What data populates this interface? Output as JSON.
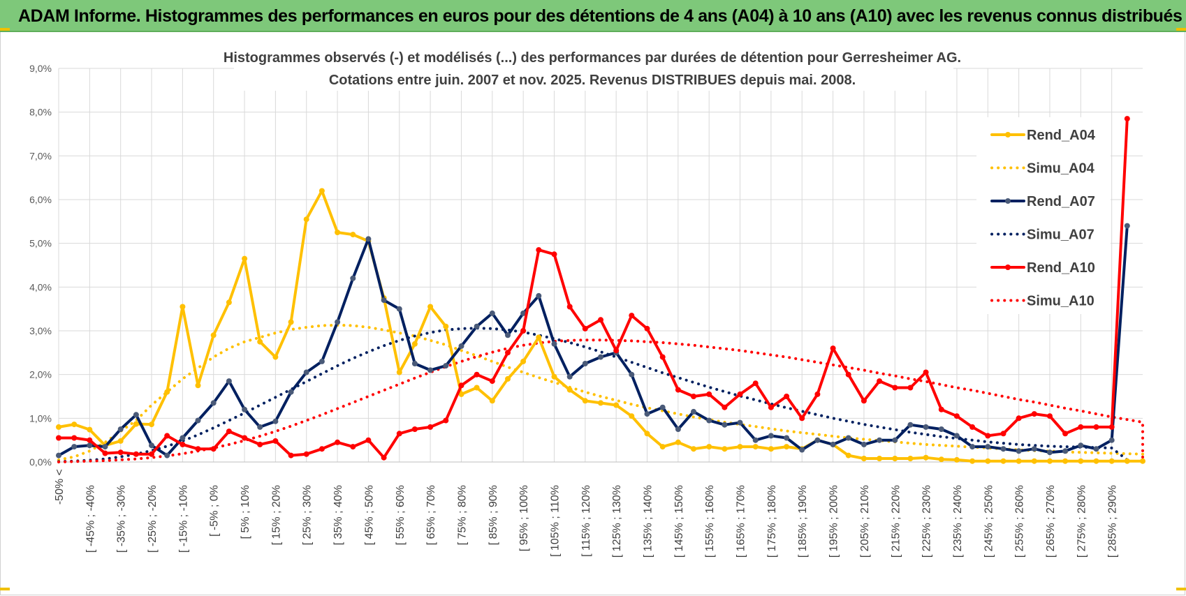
{
  "header": {
    "title": "ADAM Informe. Histogrammes des performances en euros pour des détentions de 4 ans (A04) à 10 ans (A10) avec les revenus connus distribués"
  },
  "colors": {
    "banner": "#7ec87a",
    "a04": "#ffc000",
    "a07": "#002060",
    "a10": "#ff0000",
    "grid": "#d9d9d9"
  },
  "chart_data": {
    "type": "line",
    "title_lines": [
      "Histogrammes observés (-) et modélisés (...) des performances par durées de détention pour Gerresheimer AG.",
      "Cotations entre juin. 2007 et nov. 2025. Revenus DISTRIBUES depuis mai. 2008."
    ],
    "ylim": [
      0,
      9
    ],
    "y_ticks": [
      "0,0%",
      "1,0%",
      "2,0%",
      "3,0%",
      "4,0%",
      "5,0%",
      "6,0%",
      "7,0%",
      "8,0%",
      "9,0%"
    ],
    "grid": true,
    "legend_position": "right",
    "x_labels": [
      "-50% <",
      "[ -45% ; -40%",
      "[ -35% ; -30%",
      "[ -25% ; -20%",
      "[ -15% ; -10%",
      "[ -5% ; 0%",
      "[ 5% ; 10%",
      "[ 15% ; 20%",
      "[ 25% ; 30%",
      "[ 35% ; 40%",
      "[ 45% ; 50%",
      "[ 55% ; 60%",
      "[ 65% ; 70%",
      "[ 75% ; 80%",
      "[ 85% ; 90%",
      "[ 95% ; 100%",
      "[ 105% ; 110%",
      "[ 115% ; 120%",
      "[ 125% ; 130%",
      "[ 135% ; 140%",
      "[ 145% ; 150%",
      "[ 155% ; 160%",
      "[ 165% ; 170%",
      "[ 175% ; 180%",
      "[ 185% ; 190%",
      "[ 195% ; 200%",
      "[ 205% ; 210%",
      "[ 215% ; 220%",
      "[ 225% ; 230%",
      "[ 235% ; 240%",
      "[ 245% ; 250%",
      "[ 255% ; 260%",
      "[ 265% ; 270%",
      "[ 275% ; 280%",
      "[ 285% ; 290%"
    ],
    "series": [
      {
        "name": "Rend_A04",
        "style": "solid",
        "color": "#ffc000",
        "values": [
          0.8,
          0.86,
          0.74,
          0.38,
          0.48,
          0.87,
          0.86,
          1.6,
          3.55,
          1.75,
          2.9,
          3.65,
          4.65,
          2.75,
          2.4,
          3.2,
          5.55,
          6.2,
          5.25,
          5.2,
          5.05,
          3.75,
          2.05,
          2.7,
          3.55,
          3.1,
          1.55,
          1.7,
          1.4,
          1.9,
          2.3,
          2.85,
          1.95,
          1.65,
          1.4,
          1.35,
          1.3,
          1.05,
          0.65,
          0.35,
          0.45,
          0.3,
          0.35,
          0.3,
          0.35,
          0.35,
          0.3,
          0.35,
          0.3,
          0.5,
          0.4,
          0.15,
          0.08,
          0.08,
          0.08,
          0.08,
          0.1,
          0.06,
          0.05,
          0.02,
          0.02,
          0.02,
          0.02,
          0.02,
          0.02,
          0.02,
          0.02,
          0.02,
          0.02,
          0.02,
          0.02
        ]
      },
      {
        "name": "Simu_A04",
        "style": "dotted",
        "color": "#ffc000",
        "values": [
          0.05,
          0.12,
          0.25,
          0.45,
          0.7,
          0.95,
          1.3,
          1.6,
          1.9,
          2.15,
          2.4,
          2.6,
          2.75,
          2.85,
          2.95,
          3.03,
          3.08,
          3.12,
          3.13,
          3.12,
          3.08,
          3.02,
          2.95,
          2.88,
          2.78,
          2.68,
          2.55,
          2.43,
          2.3,
          2.17,
          2.05,
          1.93,
          1.82,
          1.71,
          1.6,
          1.5,
          1.41,
          1.32,
          1.24,
          1.17,
          1.1,
          1.03,
          0.97,
          0.91,
          0.86,
          0.81,
          0.76,
          0.71,
          0.67,
          0.63,
          0.59,
          0.55,
          0.52,
          0.49,
          0.46,
          0.43,
          0.4,
          0.38,
          0.36,
          0.34,
          0.32,
          0.3,
          0.28,
          0.26,
          0.25,
          0.23,
          0.22,
          0.21,
          0.2,
          0.19,
          0.18
        ]
      },
      {
        "name": "Rend_A07",
        "style": "solid",
        "color": "#002060",
        "values": [
          0.15,
          0.35,
          0.38,
          0.35,
          0.75,
          1.08,
          0.38,
          0.15,
          0.55,
          0.95,
          1.35,
          1.85,
          1.2,
          0.8,
          0.93,
          1.6,
          2.05,
          2.3,
          3.2,
          4.2,
          5.1,
          3.7,
          3.5,
          2.25,
          2.1,
          2.2,
          2.65,
          3.1,
          3.4,
          2.9,
          3.4,
          3.8,
          2.7,
          1.95,
          2.25,
          2.4,
          2.5,
          2.0,
          1.1,
          1.25,
          0.75,
          1.15,
          0.95,
          0.85,
          0.9,
          0.5,
          0.6,
          0.55,
          0.28,
          0.5,
          0.4,
          0.55,
          0.4,
          0.5,
          0.5,
          0.85,
          0.8,
          0.75,
          0.6,
          0.35,
          0.35,
          0.3,
          0.25,
          0.3,
          0.22,
          0.25,
          0.38,
          0.3,
          0.5,
          5.4
        ]
      },
      {
        "name": "Simu_A07",
        "style": "dotted",
        "color": "#002060",
        "values": [
          0.01,
          0.02,
          0.04,
          0.07,
          0.12,
          0.18,
          0.26,
          0.36,
          0.48,
          0.62,
          0.78,
          0.95,
          1.12,
          1.3,
          1.48,
          1.66,
          1.84,
          2.02,
          2.2,
          2.37,
          2.52,
          2.66,
          2.78,
          2.88,
          2.96,
          3.02,
          3.05,
          3.06,
          3.05,
          3.02,
          2.97,
          2.9,
          2.82,
          2.73,
          2.63,
          2.52,
          2.4,
          2.28,
          2.16,
          2.04,
          1.93,
          1.82,
          1.71,
          1.61,
          1.51,
          1.42,
          1.33,
          1.24,
          1.16,
          1.08,
          1.0,
          0.93,
          0.86,
          0.8,
          0.74,
          0.68,
          0.63,
          0.58,
          0.54,
          0.5,
          0.46,
          0.43,
          0.4,
          0.38,
          0.36,
          0.35,
          0.34,
          0.33,
          0.32,
          0.05
        ]
      },
      {
        "name": "Rend_A10",
        "style": "solid",
        "color": "#ff0000",
        "values": [
          0.55,
          0.55,
          0.5,
          0.2,
          0.22,
          0.18,
          0.18,
          0.6,
          0.4,
          0.3,
          0.3,
          0.7,
          0.55,
          0.4,
          0.48,
          0.15,
          0.18,
          0.3,
          0.45,
          0.35,
          0.5,
          0.1,
          0.65,
          0.75,
          0.8,
          0.95,
          1.75,
          2.0,
          1.85,
          2.5,
          3.0,
          4.85,
          4.75,
          3.55,
          3.05,
          3.25,
          2.55,
          3.35,
          3.05,
          2.4,
          1.65,
          1.5,
          1.55,
          1.25,
          1.55,
          1.8,
          1.25,
          1.5,
          1.0,
          1.55,
          2.6,
          2.0,
          1.4,
          1.85,
          1.7,
          1.7,
          2.05,
          1.2,
          1.05,
          0.8,
          0.6,
          0.65,
          1.0,
          1.1,
          1.05,
          0.65,
          0.8,
          0.8,
          0.8,
          7.85
        ]
      },
      {
        "name": "Simu_A10",
        "style": "dotted",
        "color": "#ff0000",
        "values": [
          0.0,
          0.01,
          0.02,
          0.03,
          0.05,
          0.07,
          0.1,
          0.14,
          0.19,
          0.25,
          0.32,
          0.4,
          0.49,
          0.59,
          0.7,
          0.82,
          0.95,
          1.08,
          1.22,
          1.36,
          1.5,
          1.64,
          1.78,
          1.92,
          2.05,
          2.18,
          2.3,
          2.41,
          2.51,
          2.6,
          2.67,
          2.72,
          2.76,
          2.78,
          2.79,
          2.79,
          2.78,
          2.77,
          2.75,
          2.73,
          2.7,
          2.67,
          2.63,
          2.59,
          2.55,
          2.5,
          2.45,
          2.4,
          2.34,
          2.28,
          2.22,
          2.16,
          2.1,
          2.03,
          1.97,
          1.9,
          1.84,
          1.77,
          1.7,
          1.64,
          1.57,
          1.5,
          1.43,
          1.37,
          1.3,
          1.23,
          1.17,
          1.1,
          1.03,
          0.97,
          0.91,
          0.85,
          0.8,
          0.05
        ]
      }
    ]
  }
}
